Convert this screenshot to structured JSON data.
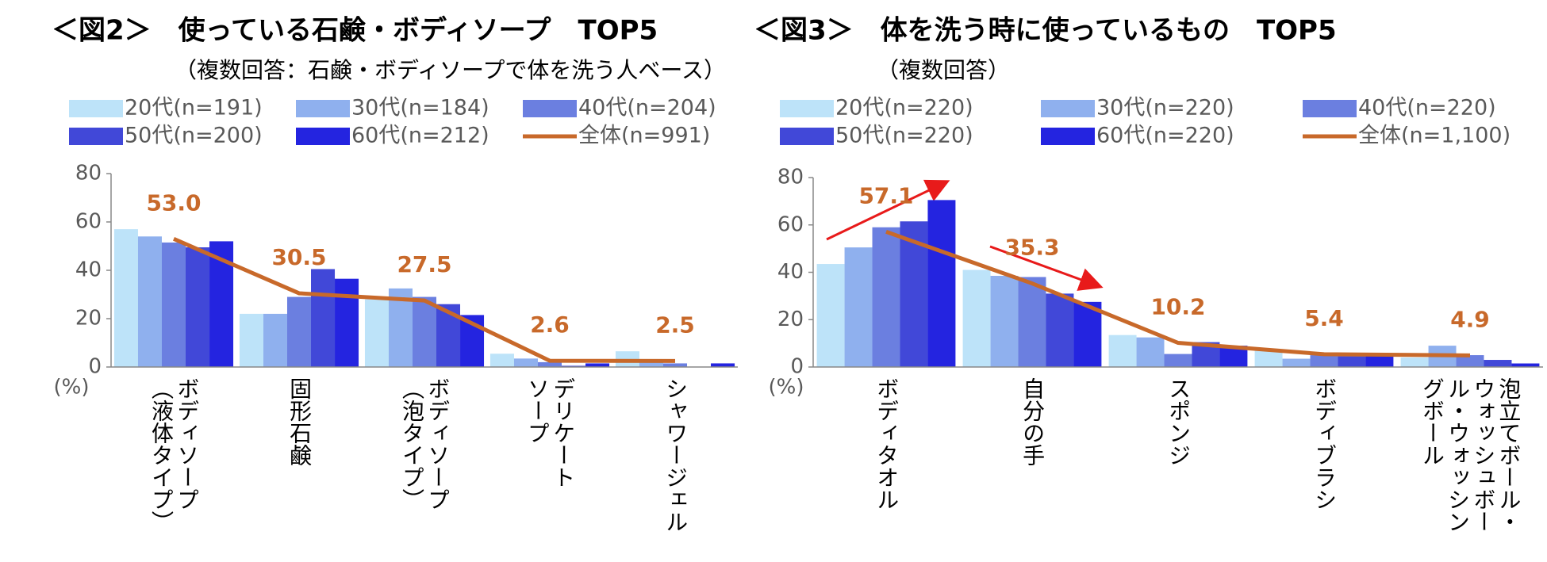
{
  "chart_data": [
    {
      "type": "bar",
      "title": "＜図2＞　使っている石鹸・ボディソープ　TOP5",
      "subtitle": "（複数回答：石鹸・ボディソープで体を洗う人ベース）",
      "y_unit": "(%)",
      "categories": [
        "ボディソープ\n（液体タイプ）",
        "固形石鹸",
        "ボディソープ\n（泡タイプ）",
        "デリケート\nソープ",
        "シャワージェル"
      ],
      "ylim": [
        0,
        80
      ],
      "yticks": [
        0,
        20,
        40,
        60,
        80
      ],
      "series": [
        {
          "name": "20代(n=191)",
          "color": "#bde3f9",
          "values": [
            57,
            22,
            28,
            5.5,
            6.5
          ]
        },
        {
          "name": "30代(n=184)",
          "color": "#8fb0ee",
          "values": [
            54,
            22,
            32.5,
            3.5,
            2
          ]
        },
        {
          "name": "40代(n=204)",
          "color": "#6b7fe0",
          "values": [
            51.5,
            29,
            29,
            2,
            1.5
          ]
        },
        {
          "name": "50代(n=200)",
          "color": "#4148d8",
          "values": [
            49.5,
            40.5,
            26,
            0.5,
            0
          ]
        },
        {
          "name": "60代(n=212)",
          "color": "#2424e0",
          "values": [
            52,
            36.5,
            21.5,
            1.5,
            1.5
          ]
        },
        {
          "name": "全体(n=991)",
          "color": "#c8692a",
          "kind": "line",
          "values": [
            53.0,
            30.5,
            27.5,
            2.6,
            2.5
          ],
          "value_labels": [
            "53.0",
            "30.5",
            "27.5",
            "2.6",
            "2.5"
          ]
        }
      ]
    },
    {
      "type": "bar",
      "title": "＜図3＞　体を洗う時に使っているもの　TOP5",
      "subtitle": "（複数回答）",
      "y_unit": "(%)",
      "categories": [
        "ボディタオル",
        "自分の手",
        "スポンジ",
        "ボディブラシ",
        "泡立てボール・ウォッシュボール・ウォッシングボール"
      ],
      "ylim": [
        0,
        80
      ],
      "yticks": [
        0,
        20,
        40,
        60,
        80
      ],
      "series": [
        {
          "name": "20代(n=220)",
          "color": "#bde3f9",
          "values": [
            43.5,
            41,
            13.5,
            7.5,
            4
          ]
        },
        {
          "name": "30代(n=220)",
          "color": "#8fb0ee",
          "values": [
            50.5,
            38.5,
            12.5,
            3.5,
            9
          ]
        },
        {
          "name": "40代(n=220)",
          "color": "#6b7fe0",
          "values": [
            59,
            38,
            5.5,
            5,
            5
          ]
        },
        {
          "name": "50代(n=220)",
          "color": "#4148d8",
          "values": [
            61.5,
            31,
            10.5,
            4.5,
            3
          ]
        },
        {
          "name": "60代(n=220)",
          "color": "#2424e0",
          "values": [
            70.5,
            27.5,
            9,
            5,
            1.5
          ]
        },
        {
          "name": "全体(n=1,100)",
          "color": "#c8692a",
          "kind": "line",
          "values": [
            57.1,
            35.3,
            10.2,
            5.4,
            4.9
          ],
          "value_labels": [
            "57.1",
            "35.3",
            "10.2",
            "5.4",
            "4.9"
          ]
        }
      ]
    }
  ]
}
